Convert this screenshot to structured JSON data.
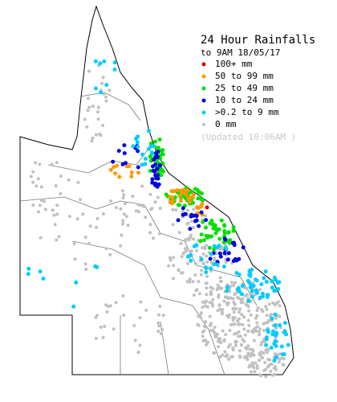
{
  "title": "24 Hour Rainfalls",
  "subtitle": "to 9AM 18/05/17",
  "legend": {
    "items": [
      {
        "label": "100+ mm",
        "color": "#e00000"
      },
      {
        "label": "50  to 99 mm",
        "color": "#ff9900"
      },
      {
        "label": "25  to 49 mm",
        "color": "#00e000"
      },
      {
        "label": "10  to 24 mm",
        "color": "#0000e0"
      },
      {
        "label": ">0.2 to 9 mm",
        "color": "#00ccff"
      },
      {
        "label": "0 mm",
        "color": "#c0c0c0"
      }
    ]
  },
  "updated": "(Updated 10:06AM  )"
}
